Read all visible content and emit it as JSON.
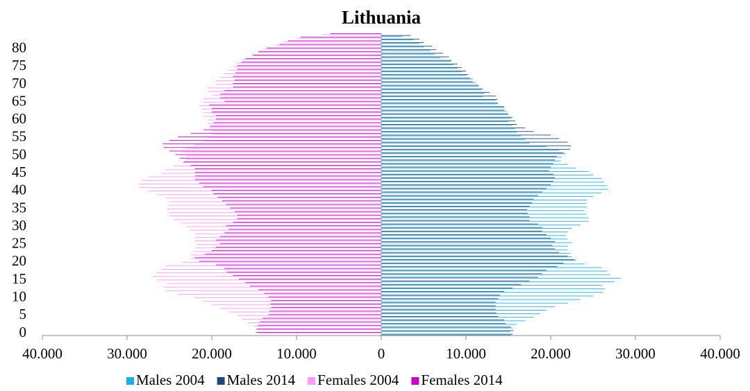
{
  "chart_data": {
    "type": "pyramid",
    "title": "Lithuania",
    "categories": [
      0,
      null,
      null,
      null,
      null,
      5,
      null,
      null,
      null,
      null,
      10,
      null,
      null,
      null,
      null,
      15,
      null,
      null,
      null,
      null,
      20,
      null,
      null,
      null,
      null,
      25,
      null,
      null,
      null,
      null,
      30,
      null,
      null,
      null,
      null,
      35,
      null,
      null,
      null,
      null,
      40,
      null,
      null,
      null,
      null,
      45,
      null,
      null,
      null,
      null,
      50,
      null,
      null,
      null,
      null,
      55,
      null,
      null,
      null,
      null,
      60,
      null,
      null,
      null,
      null,
      65,
      null,
      null,
      null,
      null,
      70,
      null,
      null,
      null,
      null,
      75,
      null,
      null,
      null,
      null,
      80,
      null,
      null,
      null,
      null
    ],
    "series": [
      {
        "name": "Males 2004",
        "color": "#1ab0e8",
        "values": [
          15300,
          15200,
          15500,
          16000,
          17000,
          18000,
          18700,
          19500,
          20500,
          22000,
          23500,
          25000,
          26200,
          26400,
          26000,
          27500,
          28300,
          27000,
          26700,
          26000,
          24000,
          23000,
          22500,
          22300,
          22000,
          22000,
          22500,
          22000,
          21800,
          22000,
          22500,
          23500,
          24500,
          24500,
          24200,
          24000,
          24300,
          24200,
          24300,
          25000,
          26000,
          26800,
          26700,
          26300,
          26000,
          25000,
          24500,
          23000,
          22000,
          21200,
          21300,
          21800,
          21000,
          19500,
          17500,
          17000,
          16500,
          16000,
          15800,
          15500,
          15000,
          15300,
          15000,
          14800,
          14500,
          13700,
          13500,
          12000,
          12200,
          11800,
          11500,
          11200,
          10800,
          10000,
          9500,
          9000,
          8500,
          8200,
          7000,
          6300,
          5800,
          5000,
          4500,
          3800,
          2500
        ]
      },
      {
        "name": "Males 2014",
        "color": "#1f497d",
        "values": [
          15500,
          15600,
          15300,
          14700,
          14500,
          13800,
          13600,
          13500,
          13500,
          13500,
          13800,
          14000,
          14500,
          15500,
          16500,
          17500,
          18500,
          19000,
          19500,
          20800,
          21500,
          22800,
          22000,
          21000,
          20500,
          20200,
          20500,
          20000,
          19500,
          19000,
          19000,
          18500,
          17500,
          17500,
          17300,
          17200,
          17500,
          17800,
          18000,
          18500,
          19000,
          19500,
          20000,
          20300,
          20500,
          20300,
          19800,
          20000,
          20300,
          20500,
          20700,
          21500,
          22300,
          22400,
          22000,
          21000,
          20000,
          18000,
          17000,
          16000,
          15800,
          15500,
          15000,
          14500,
          14500,
          13800,
          13700,
          13500,
          12800,
          12000,
          11500,
          10800,
          10500,
          10300,
          10000,
          9500,
          9000,
          8300,
          8000,
          7300,
          6500,
          6000,
          5000,
          4500,
          3500
        ]
      },
      {
        "name": "Females 2004",
        "color": "#ff99ff",
        "values": [
          -14500,
          -14800,
          -15000,
          -15800,
          -16500,
          -17000,
          -18000,
          -19000,
          -20000,
          -21000,
          -22000,
          -24000,
          -25500,
          -25700,
          -25300,
          -26500,
          -27000,
          -26500,
          -26000,
          -25500,
          -23500,
          -22500,
          -22500,
          -22300,
          -22000,
          -21800,
          -22000,
          -22000,
          -22000,
          -22500,
          -23000,
          -23500,
          -24500,
          -25000,
          -25000,
          -25300,
          -25200,
          -25000,
          -25500,
          -26500,
          -27500,
          -28500,
          -28700,
          -28300,
          -27500,
          -26000,
          -25500,
          -24500,
          -23500,
          -23000,
          -23000,
          -23500,
          -23000,
          -22000,
          -21000,
          -20500,
          -20000,
          -20000,
          -20200,
          -20500,
          -20500,
          -21000,
          -21000,
          -21200,
          -21500,
          -21000,
          -21000,
          -20000,
          -20500,
          -20500,
          -19500,
          -19500,
          -19000,
          -18500,
          -18000,
          -17500,
          -17000,
          -16500,
          -15000,
          -14500,
          -13800,
          -12500,
          -11500,
          -10000,
          -7000
        ]
      },
      {
        "name": "Females 2014",
        "color": "#cc00cc",
        "values": [
          -14800,
          -14700,
          -14500,
          -14300,
          -14000,
          -13300,
          -13200,
          -13000,
          -13100,
          -13000,
          -13300,
          -13800,
          -14500,
          -15500,
          -16000,
          -16800,
          -17500,
          -18200,
          -18500,
          -19500,
          -21500,
          -22000,
          -20800,
          -20000,
          -19500,
          -19000,
          -19500,
          -19000,
          -18500,
          -18000,
          -18300,
          -17500,
          -17000,
          -17000,
          -17300,
          -17800,
          -18300,
          -18800,
          -19300,
          -19800,
          -20000,
          -21000,
          -21500,
          -22000,
          -22000,
          -22000,
          -22000,
          -22500,
          -23300,
          -23800,
          -24300,
          -25000,
          -25700,
          -25800,
          -25000,
          -24000,
          -22500,
          -21000,
          -20200,
          -19800,
          -19500,
          -19500,
          -20000,
          -20000,
          -20300,
          -18500,
          -19000,
          -19000,
          -18500,
          -17500,
          -17500,
          -17300,
          -17500,
          -17200,
          -17000,
          -17000,
          -16500,
          -16000,
          -15200,
          -14500,
          -13500,
          -12000,
          -11000,
          -9500,
          -6000
        ]
      }
    ],
    "xlim": [
      -40000,
      40000
    ],
    "xticks": [
      {
        "value": -40000,
        "label": "40.000"
      },
      {
        "value": -30000,
        "label": "30.000"
      },
      {
        "value": -20000,
        "label": "20.000"
      },
      {
        "value": -10000,
        "label": "10.000"
      },
      0,
      {
        "value": 10000,
        "label": "10.000"
      },
      {
        "value": 20000,
        "label": "20.000"
      },
      {
        "value": 30000,
        "label": "30.000"
      },
      {
        "value": 40000,
        "label": "40.000"
      }
    ],
    "legend": "bottom"
  }
}
